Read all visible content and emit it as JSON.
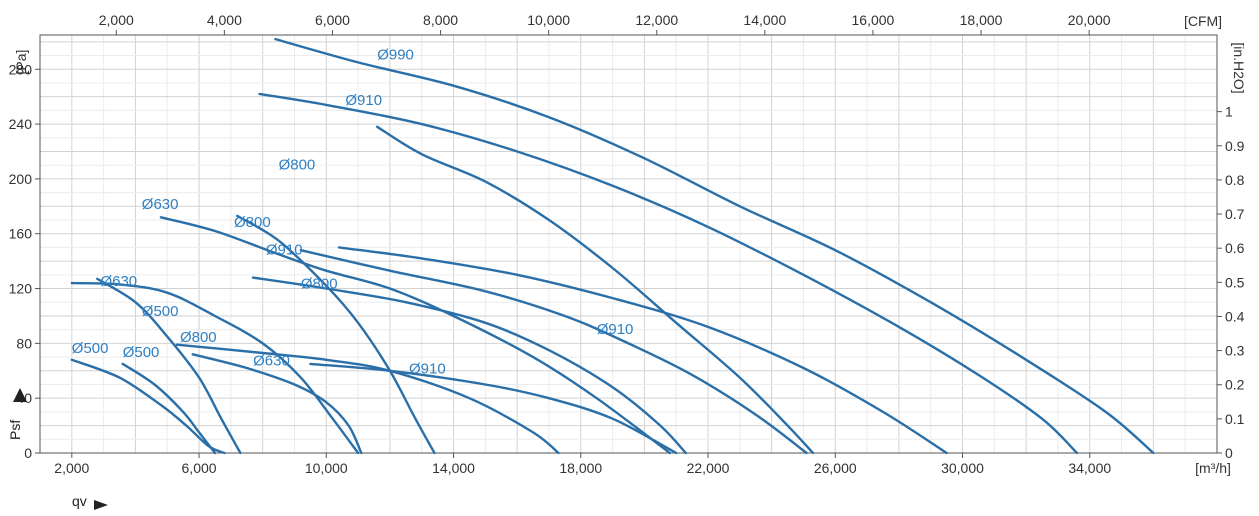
{
  "chart_data": {
    "type": "line",
    "xlabel": "qv",
    "ylabel": "Psf",
    "x_unit": "[m³/h]",
    "y_unit": "[Pa]",
    "x2_unit": "[CFM]",
    "y2_unit": "[in.H2O]",
    "xlim": [
      1000,
      38000
    ],
    "ylim": [
      0,
      305
    ],
    "x_ticks": [
      "2,000",
      "6,000",
      "10,000",
      "14,000",
      "18,000",
      "22,000",
      "26,000",
      "30,000",
      "34,000"
    ],
    "y_ticks": [
      "0",
      "40",
      "80",
      "120",
      "160",
      "200",
      "240",
      "280"
    ],
    "x2_ticks": [
      "2,000",
      "4,000",
      "6,000",
      "8,000",
      "10,000",
      "12,000",
      "14,000",
      "16,000",
      "18,000",
      "20,000"
    ],
    "y2_ticks": [
      "0",
      "0.1",
      "0.2",
      "0.3",
      "0.4",
      "0.5",
      "0.6",
      "0.7",
      "0.8",
      "0.9",
      "1"
    ],
    "grid": true,
    "colors": {
      "curve": "#2a6fa8",
      "label": "#2f80c3",
      "grid": "#d2d2d2"
    },
    "series": [
      {
        "name": "Ø990",
        "x": [
          8400,
          11000,
          14000,
          17000,
          20000,
          23000,
          26000,
          29000,
          32000,
          34500,
          36000
        ],
        "y": [
          302,
          285,
          268,
          245,
          215,
          180,
          148,
          110,
          68,
          30,
          0
        ]
      },
      {
        "name": "Ø910",
        "x": [
          7900,
          10000,
          13000,
          16000,
          19000,
          22000,
          25000,
          28000,
          30500,
          32500,
          33600
        ],
        "y": [
          262,
          254,
          240,
          220,
          195,
          165,
          130,
          92,
          57,
          25,
          0
        ]
      },
      {
        "name": "Ø800",
        "x": [
          11600,
          13000,
          15000,
          17000,
          19000,
          21000,
          23000,
          24500,
          25300
        ],
        "y": [
          238,
          218,
          198,
          170,
          135,
          95,
          55,
          20,
          0
        ]
      },
      {
        "name": "Ø910",
        "x": [
          10400,
          13000,
          16000,
          19000,
          22000,
          25000,
          27500,
          29500
        ],
        "y": [
          150,
          142,
          130,
          113,
          92,
          62,
          30,
          0
        ]
      },
      {
        "name": "Ø910",
        "x": [
          9200,
          12000,
          15000,
          17500,
          19500,
          21500,
          23500,
          25100
        ],
        "y": [
          148,
          133,
          118,
          100,
          80,
          57,
          28,
          0
        ]
      },
      {
        "name": "Ø800",
        "x": [
          7700,
          10000,
          12500,
          15000,
          17000,
          19000,
          20500,
          21300
        ],
        "y": [
          128,
          120,
          110,
          95,
          75,
          48,
          20,
          0
        ]
      },
      {
        "name": "Ø630",
        "x": [
          4800,
          6500,
          8500,
          10000,
          12000,
          14000,
          16500,
          18500,
          20800
        ],
        "y": [
          172,
          162,
          145,
          133,
          120,
          100,
          70,
          40,
          0
        ]
      },
      {
        "name": "Ø800",
        "x": [
          7200,
          8500,
          10000,
          11000,
          12000,
          12800,
          13400
        ],
        "y": [
          173,
          155,
          122,
          95,
          60,
          25,
          0
        ]
      },
      {
        "name": "Ø910",
        "x": [
          9500,
          12000,
          15000,
          17000,
          19000,
          21000
        ],
        "y": [
          65,
          60,
          50,
          40,
          25,
          0
        ]
      },
      {
        "name": "Ø800",
        "x": [
          5300,
          8000,
          10000,
          12000,
          14500,
          16500,
          17300
        ],
        "y": [
          79,
          73,
          68,
          60,
          40,
          15,
          0
        ]
      },
      {
        "name": "Ø630",
        "x": [
          5800,
          7500,
          9000,
          10000,
          10700,
          11100
        ],
        "y": [
          72,
          62,
          50,
          37,
          20,
          0
        ]
      },
      {
        "name": "Ø630",
        "x": [
          2000,
          3500,
          5000,
          6500,
          8000,
          9200,
          10200,
          11000
        ],
        "y": [
          124,
          123,
          117,
          100,
          80,
          55,
          25,
          0
        ]
      },
      {
        "name": "Ø500",
        "x": [
          2800,
          4000,
          5000,
          6000,
          6700,
          7300
        ],
        "y": [
          127,
          110,
          85,
          55,
          25,
          0
        ]
      },
      {
        "name": "Ø500",
        "x": [
          2000,
          3500,
          4800,
          5600,
          6300,
          6800
        ],
        "y": [
          68,
          55,
          35,
          20,
          5,
          0
        ]
      },
      {
        "name": "Ø500",
        "x": [
          3600,
          4600,
          5500,
          6000,
          6500
        ],
        "y": [
          65,
          50,
          30,
          15,
          0
        ]
      }
    ],
    "labels": [
      {
        "text": "Ø990",
        "x": 11600,
        "y": 287
      },
      {
        "text": "Ø910",
        "x": 10600,
        "y": 254
      },
      {
        "text": "Ø800",
        "x": 8500,
        "y": 207
      },
      {
        "text": "Ø910",
        "x": 8100,
        "y": 145
      },
      {
        "text": "Ø630",
        "x": 4200,
        "y": 178
      },
      {
        "text": "Ø800",
        "x": 7100,
        "y": 165
      },
      {
        "text": "Ø800",
        "x": 9200,
        "y": 120
      },
      {
        "text": "Ø910",
        "x": 18500,
        "y": 87
      },
      {
        "text": "Ø630",
        "x": 2900,
        "y": 122
      },
      {
        "text": "Ø500",
        "x": 4200,
        "y": 100
      },
      {
        "text": "Ø800",
        "x": 5400,
        "y": 81
      },
      {
        "text": "Ø630",
        "x": 7700,
        "y": 64
      },
      {
        "text": "Ø910",
        "x": 12600,
        "y": 58
      },
      {
        "text": "Ø500",
        "x": 2000,
        "y": 73
      },
      {
        "text": "Ø500",
        "x": 3600,
        "y": 70
      }
    ]
  }
}
